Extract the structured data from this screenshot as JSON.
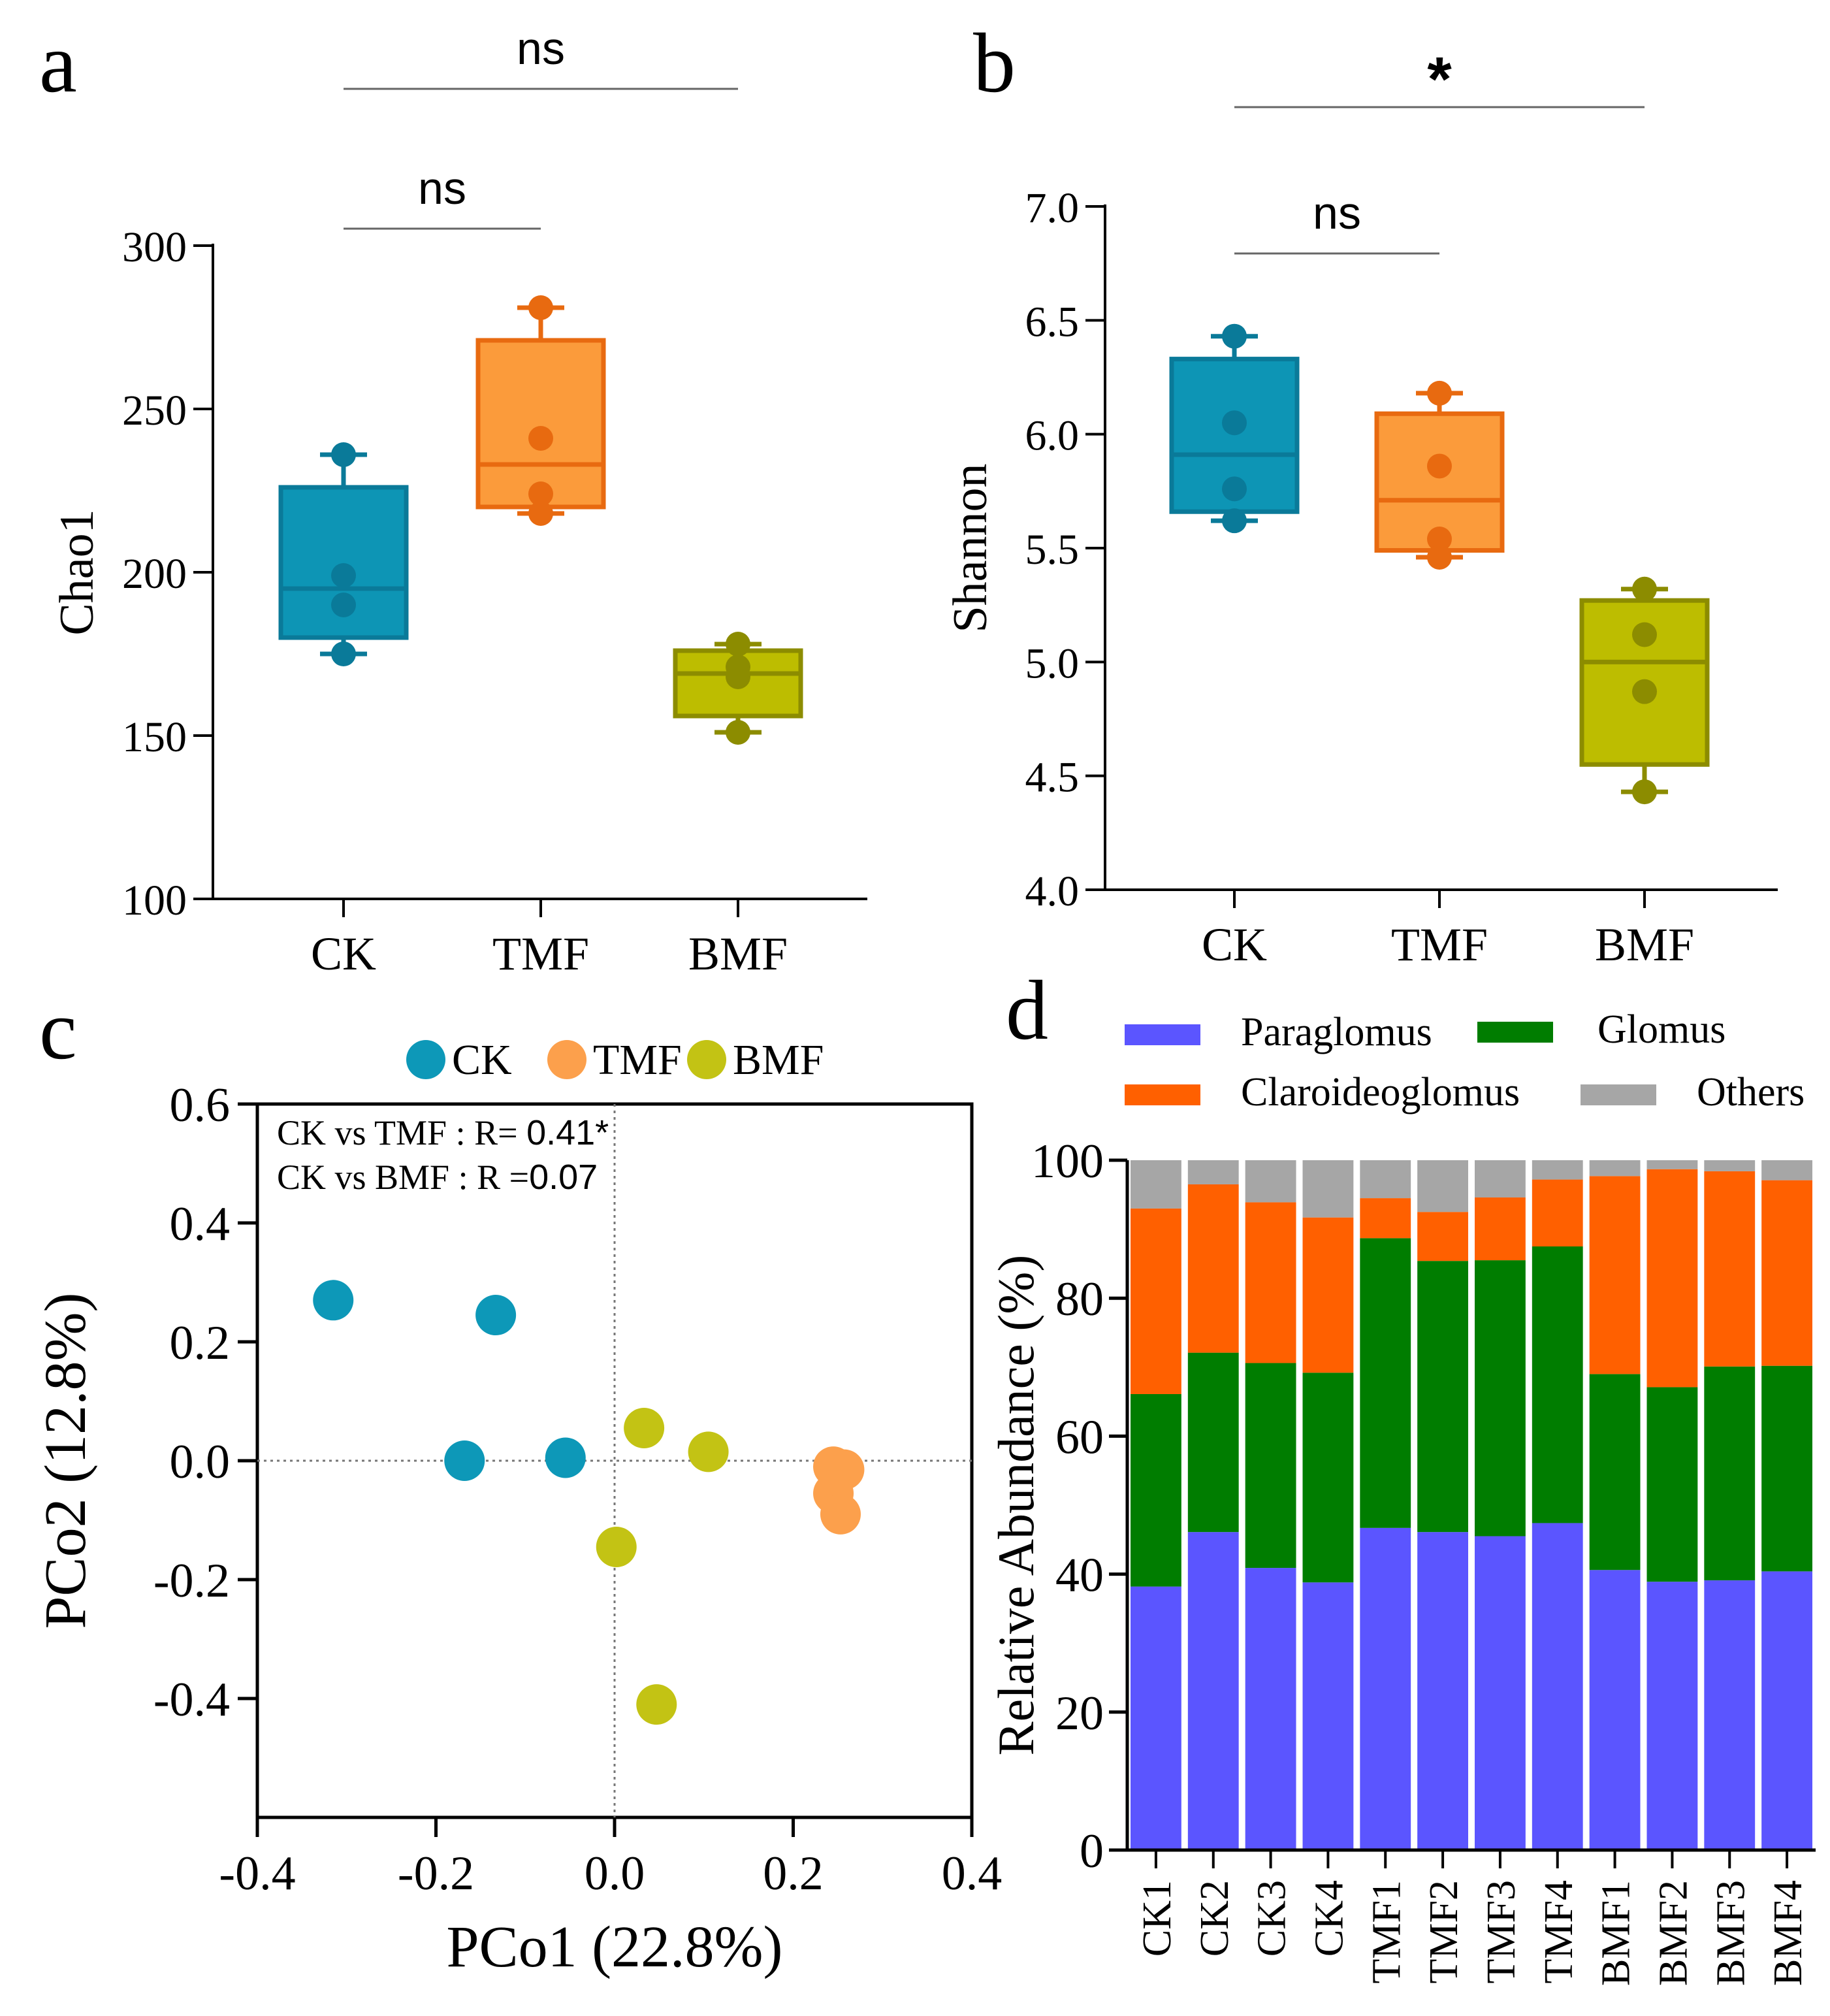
{
  "colors": {
    "ck": "#0a7a99",
    "ck_fill": "#0d95b5",
    "tmf": "#e86a10",
    "tmf_fill": "#fb9b3b",
    "bmf": "#8c8c00",
    "bmf_fill": "#bdbd00",
    "pcoa_ck": "#0d98b8",
    "pcoa_tmf": "#fca04c",
    "pcoa_bmf": "#c3c314",
    "paraglomus": "#5b55ff",
    "glomus": "#007d00",
    "claroideoglomus": "#ff6000",
    "others": "#a6a6a6",
    "axis": "#000000",
    "sig_line": "#666666"
  },
  "chart_data": [
    {
      "panel": "a",
      "type": "box",
      "ylabel": "Chao1",
      "ylim": [
        100,
        300
      ],
      "yticks": [
        "100",
        "150",
        "200",
        "250",
        "300"
      ],
      "categories": [
        "CK",
        "TMF",
        "BMF"
      ],
      "boxes": [
        {
          "name": "CK",
          "min": 175,
          "q1": 180,
          "median": 195,
          "q3": 226,
          "max": 236,
          "points": [
            236,
            199,
            190,
            175
          ]
        },
        {
          "name": "TMF",
          "min": 218,
          "q1": 220,
          "median": 233,
          "q3": 271,
          "max": 281,
          "points": [
            281,
            241,
            224,
            218
          ]
        },
        {
          "name": "BMF",
          "min": 151,
          "q1": 156,
          "median": 169,
          "q3": 176,
          "max": 178,
          "points": [
            178,
            171,
            168,
            151
          ]
        }
      ],
      "significance": [
        {
          "from": "CK",
          "to": "BMF",
          "label": "ns"
        },
        {
          "from": "CK",
          "to": "TMF",
          "label": "ns"
        }
      ]
    },
    {
      "panel": "b",
      "type": "box",
      "ylabel": "Shannon",
      "ylim": [
        4.0,
        7.0
      ],
      "yticks": [
        "4.0",
        "4.5",
        "5.0",
        "5.5",
        "6.0",
        "6.5",
        "7.0"
      ],
      "categories": [
        "CK",
        "TMF",
        "BMF"
      ],
      "boxes": [
        {
          "name": "CK",
          "min": 5.62,
          "q1": 5.66,
          "median": 5.91,
          "q3": 6.33,
          "max": 6.43,
          "points": [
            6.43,
            6.05,
            5.76,
            5.62
          ]
        },
        {
          "name": "TMF",
          "min": 5.46,
          "q1": 5.49,
          "median": 5.71,
          "q3": 6.09,
          "max": 6.18,
          "points": [
            6.18,
            5.86,
            5.54,
            5.46
          ]
        },
        {
          "name": "BMF",
          "min": 4.43,
          "q1": 4.55,
          "median": 5.0,
          "q3": 5.27,
          "max": 5.32,
          "points": [
            5.32,
            5.12,
            4.87,
            4.43
          ]
        }
      ],
      "significance": [
        {
          "from": "CK",
          "to": "BMF",
          "label": "*"
        },
        {
          "from": "CK",
          "to": "TMF",
          "label": "ns"
        }
      ]
    },
    {
      "panel": "c",
      "type": "scatter",
      "xlabel": "PCo1 (22.8%)",
      "ylabel": "PCo2 (12.8%)",
      "xlim": [
        -0.4,
        0.4
      ],
      "ylim": [
        -0.6,
        0.6
      ],
      "xticks": [
        "-0.4",
        "-0.2",
        "0.0",
        "0.2",
        "0.4"
      ],
      "yticks": [
        "-0.4",
        "-0.2",
        "0.0",
        "0.2",
        "0.4",
        "0.6"
      ],
      "legend": [
        "CK",
        "TMF",
        "BMF"
      ],
      "annotations": [
        {
          "text": "CK vs TMF :  R= ",
          "value": "0.41*"
        },
        {
          "text": "CK vs BMF :  R =",
          "value": "0.07"
        }
      ],
      "series": [
        {
          "name": "CK",
          "points": [
            [
              -0.315,
              0.27
            ],
            [
              -0.133,
              0.245
            ],
            [
              -0.168,
              0.0
            ],
            [
              -0.055,
              0.005
            ]
          ]
        },
        {
          "name": "TMF",
          "points": [
            [
              0.257,
              -0.015
            ],
            [
              0.245,
              -0.01
            ],
            [
              0.245,
              -0.055
            ],
            [
              0.253,
              -0.09
            ]
          ]
        },
        {
          "name": "BMF",
          "points": [
            [
              0.033,
              0.055
            ],
            [
              0.105,
              0.015
            ],
            [
              0.002,
              -0.145
            ],
            [
              0.047,
              -0.41
            ]
          ]
        }
      ]
    },
    {
      "panel": "d",
      "type": "stacked-bar",
      "ylabel": "Relative Abundance (%)",
      "ylim": [
        0,
        100
      ],
      "yticks": [
        "0",
        "20",
        "40",
        "60",
        "80",
        "100"
      ],
      "categories": [
        "CK1",
        "CK2",
        "CK3",
        "CK4",
        "TMF1",
        "TMF2",
        "TMF3",
        "TMF4",
        "BMF1",
        "BMF2",
        "BMF3",
        "BMF4"
      ],
      "legend": [
        "Paraglomus",
        "Glomus",
        "Claroideoglomus",
        "Others"
      ],
      "series": [
        {
          "name": "Paraglomus",
          "values": [
            38.2,
            46.1,
            40.9,
            38.8,
            46.7,
            46.1,
            45.5,
            47.4,
            40.6,
            38.9,
            39.1,
            40.4
          ]
        },
        {
          "name": "Glomus",
          "values": [
            27.9,
            26.0,
            29.7,
            30.4,
            42.0,
            39.3,
            40.0,
            40.1,
            28.4,
            28.2,
            31.0,
            29.8
          ]
        },
        {
          "name": "Claroideoglomus",
          "values": [
            26.9,
            24.4,
            23.3,
            22.5,
            5.8,
            7.1,
            9.1,
            9.7,
            28.7,
            31.6,
            28.3,
            26.9
          ]
        },
        {
          "name": "Others",
          "values": [
            7.0,
            3.5,
            6.1,
            8.3,
            5.5,
            7.5,
            5.4,
            2.8,
            2.3,
            1.3,
            1.6,
            2.9
          ]
        }
      ]
    }
  ],
  "panel_letters": [
    "a",
    "b",
    "c",
    "d"
  ]
}
